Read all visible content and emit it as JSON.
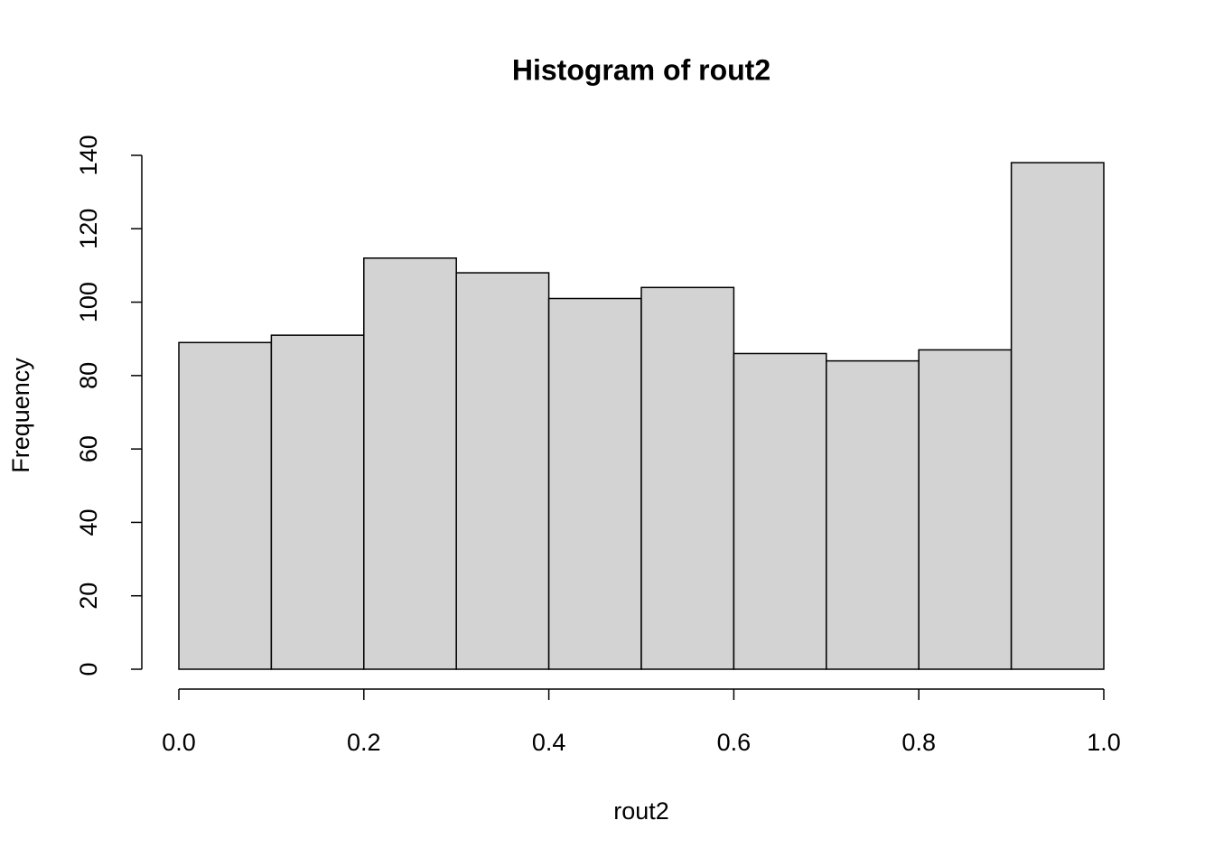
{
  "chart_data": {
    "type": "histogram",
    "title": "Histogram of rout2",
    "x_label": "rout2",
    "y_label": "Frequency",
    "bins": [
      0,
      0.1,
      0.2,
      0.3,
      0.4,
      0.5,
      0.6,
      0.7,
      0.8,
      0.9,
      1
    ],
    "counts": [
      89,
      91,
      112,
      108,
      101,
      104,
      86,
      84,
      87,
      138
    ],
    "color": "#d3d3d3",
    "xlim": [
      0,
      1
    ],
    "xticks": [
      {
        "value": 0,
        "label": "0.0"
      },
      0.2,
      0.4,
      0.6,
      0.8,
      {
        "value": 1,
        "label": "1.0"
      }
    ],
    "ylim": [
      0,
      140
    ],
    "yticks": [
      0,
      20,
      40,
      60,
      80,
      100,
      120,
      140
    ]
  }
}
